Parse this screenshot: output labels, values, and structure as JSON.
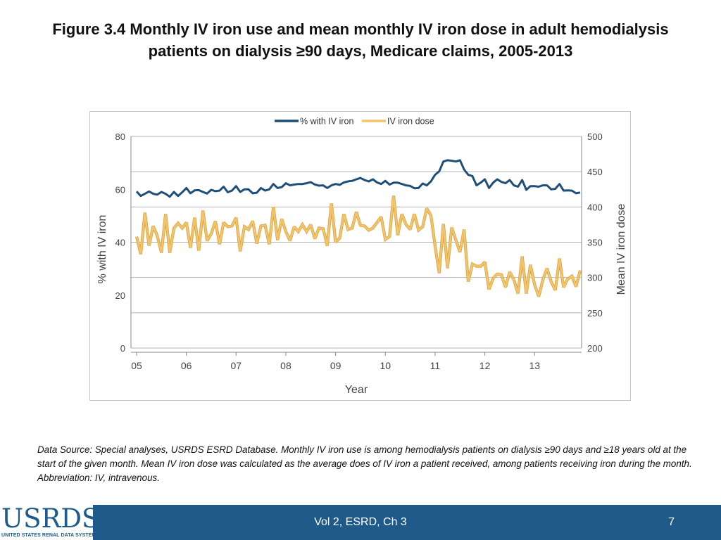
{
  "slide": {
    "title": "Figure 3.4 Monthly IV iron use and mean monthly IV iron dose in adult hemodialysis patients on dialysis ≥90 days, Medicare claims, 2005-2013",
    "source_note": "Data Source:  Special analyses, USRDS ESRD Database. Monthly IV iron use is among hemodialysis patients on dialysis ≥90 days and ≥18 years old at the start of the given month. Mean IV iron dose was calculated as the average does of IV iron a patient received, among patients receiving iron during the month. Abbreviation: IV, intravenous.",
    "footer_label": "Vol 2, ESRD, Ch 3",
    "page_number": "7",
    "logo_text": "USRDS",
    "logo_subtext": "UNITED STATES RENAL DATA SYSTEM"
  },
  "colors": {
    "series1": "#1f4e79",
    "series2": "#f2c46b",
    "series2_outline": "#d9a441",
    "grid": "#b5b5b5",
    "axis_text": "#444444",
    "footer": "#1e5a8a"
  },
  "chart_data": {
    "type": "line",
    "xlabel": "Year",
    "ylabel_left": "% with IV iron",
    "ylabel_right": "Mean IV iron dose",
    "x_tick_labels": [
      "05",
      "06",
      "07",
      "08",
      "09",
      "10",
      "11",
      "12",
      "13"
    ],
    "ylim_left": [
      0,
      80
    ],
    "yticks_left": [
      "0",
      "20",
      "40",
      "60",
      "80"
    ],
    "ylim_right": [
      200,
      500
    ],
    "yticks_right": [
      "200",
      "250",
      "300",
      "350",
      "400",
      "450",
      "500"
    ],
    "legend": [
      "% with IV iron",
      "IV iron dose"
    ],
    "grid": "horizontal",
    "legend_position": "top-center",
    "start": "2005-01",
    "series": [
      {
        "name": "% with IV iron",
        "axis": "left",
        "values": [
          59.2,
          57.5,
          58.3,
          59.2,
          58.3,
          58.0,
          59.0,
          58.3,
          57.2,
          59.0,
          57.5,
          58.9,
          60.5,
          58.5,
          59.6,
          59.7,
          59.0,
          58.4,
          59.8,
          59.3,
          59.5,
          61.0,
          58.9,
          59.5,
          61.2,
          59.0,
          60.0,
          60.0,
          58.5,
          58.7,
          60.5,
          59.5,
          60.0,
          62.0,
          60.5,
          60.8,
          62.3,
          61.5,
          61.8,
          62.0,
          62.0,
          62.3,
          62.7,
          61.8,
          61.4,
          61.5,
          60.5,
          61.5,
          62.0,
          61.7,
          62.6,
          63.0,
          63.2,
          63.8,
          64.3,
          63.5,
          63.0,
          63.8,
          62.6,
          62.0,
          63.2,
          61.8,
          62.5,
          62.5,
          62.0,
          61.5,
          61.3,
          60.4,
          60.5,
          62.2,
          61.5,
          63.0,
          65.5,
          66.8,
          70.5,
          71.0,
          70.8,
          70.5,
          71.0,
          67.5,
          65.5,
          65.0,
          61.5,
          62.5,
          63.8,
          60.5,
          62.5,
          63.8,
          62.8,
          62.3,
          63.5,
          61.5,
          61.0,
          63.5,
          59.8,
          61.2,
          61.2,
          61.0,
          61.5,
          61.5,
          60.0,
          60.2,
          62.0,
          59.5,
          59.6,
          59.5,
          58.5,
          58.8
        ]
      },
      {
        "name": "IV iron dose",
        "axis": "right",
        "values": [
          358,
          333,
          392,
          345,
          373,
          359,
          335,
          390,
          335,
          370,
          377,
          370,
          378,
          342,
          385,
          338,
          395,
          352,
          362,
          380,
          347,
          378,
          372,
          373,
          385,
          337,
          372,
          368,
          380,
          348,
          373,
          374,
          347,
          400,
          353,
          383,
          365,
          352,
          372,
          365,
          375,
          365,
          375,
          355,
          370,
          369,
          345,
          405,
          350,
          356,
          390,
          368,
          370,
          393,
          374,
          373,
          367,
          370,
          378,
          386,
          354,
          358,
          416,
          360,
          390,
          375,
          368,
          390,
          367,
          372,
          398,
          388,
          345,
          306,
          376,
          313,
          371,
          353,
          336,
          368,
          294,
          319,
          316,
          316,
          322,
          283,
          299,
          305,
          304,
          286,
          308,
          297,
          277,
          330,
          277,
          318,
          290,
          273,
          297,
          313,
          294,
          282,
          327,
          286,
          298,
          302,
          287,
          310
        ]
      }
    ]
  }
}
